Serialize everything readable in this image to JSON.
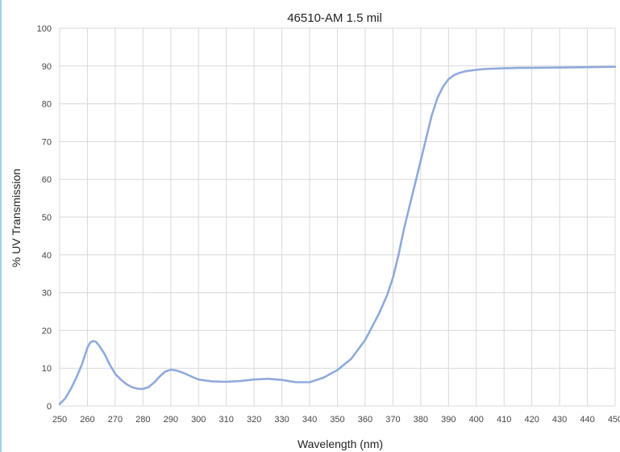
{
  "chart_data": {
    "type": "line",
    "title": "46510-AM 1.5 mil",
    "xlabel": "Wavelength (nm)",
    "ylabel": "% UV Transmission",
    "xlim": [
      250,
      450
    ],
    "ylim": [
      0,
      100
    ],
    "xticks": [
      250,
      260,
      270,
      280,
      290,
      300,
      310,
      320,
      330,
      340,
      350,
      360,
      370,
      380,
      390,
      400,
      410,
      420,
      430,
      440,
      450
    ],
    "yticks": [
      0,
      10,
      20,
      30,
      40,
      50,
      60,
      70,
      80,
      90,
      100
    ],
    "grid": true,
    "color": "#8faadc",
    "series": [
      {
        "x": [
          250,
          252,
          254,
          256,
          258,
          260,
          261,
          262,
          263,
          264,
          266,
          268,
          270,
          272,
          274,
          276,
          278,
          280,
          282,
          284,
          286,
          288,
          290,
          292,
          294,
          296,
          298,
          300,
          305,
          310,
          315,
          320,
          325,
          330,
          335,
          340,
          345,
          350,
          355,
          360,
          365,
          368,
          370,
          372,
          374,
          376,
          378,
          380,
          382,
          384,
          386,
          388,
          390,
          392,
          394,
          396,
          398,
          400,
          403,
          406,
          410,
          415,
          420,
          430,
          440,
          450
        ],
        "y": [
          0.5,
          2,
          4.5,
          7.5,
          11,
          15.5,
          16.8,
          17.2,
          17,
          16.2,
          14,
          11,
          8.5,
          7,
          5.8,
          5,
          4.6,
          4.5,
          5,
          6.2,
          7.8,
          9.1,
          9.6,
          9.4,
          8.9,
          8.3,
          7.6,
          7,
          6.5,
          6.4,
          6.6,
          7,
          7.2,
          6.9,
          6.3,
          6.3,
          7.5,
          9.5,
          12.5,
          17.5,
          24.5,
          29.5,
          34,
          40,
          47,
          53,
          59,
          65,
          71,
          77,
          81.5,
          84.5,
          86.5,
          87.6,
          88.2,
          88.6,
          88.8,
          89,
          89.2,
          89.3,
          89.4,
          89.5,
          89.5,
          89.6,
          89.7,
          89.8
        ]
      }
    ]
  }
}
